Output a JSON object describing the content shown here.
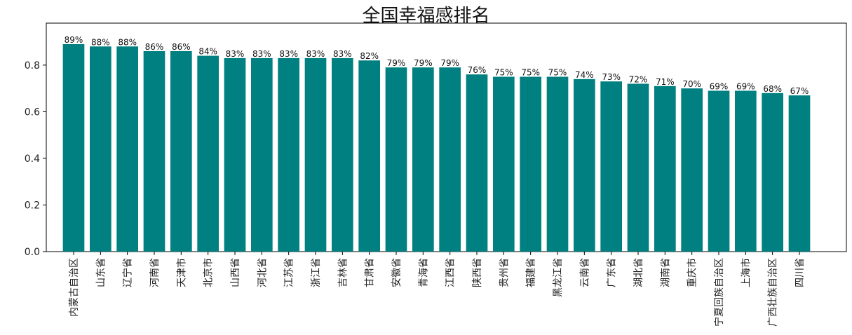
{
  "chart_data": {
    "type": "bar",
    "title": "全国幸福感排名",
    "xlabel": "",
    "ylabel": "",
    "ylim": [
      0,
      0.98
    ],
    "yticks": [
      0.0,
      0.2,
      0.4,
      0.6,
      0.8
    ],
    "ytick_labels": [
      "0.0",
      "0.2",
      "0.4",
      "0.6",
      "0.8"
    ],
    "bar_color": "#008080",
    "categories": [
      "内蒙古自治区",
      "山东省",
      "辽宁省",
      "河南省",
      "天津市",
      "北京市",
      "山西省",
      "河北省",
      "江苏省",
      "浙江省",
      "吉林省",
      "甘肃省",
      "安徽省",
      "青海省",
      "江西省",
      "陕西省",
      "贵州省",
      "福建省",
      "黑龙江省",
      "云南省",
      "广东省",
      "湖北省",
      "湖南省",
      "重庆市",
      "宁夏回族自治区",
      "上海市",
      "广西壮族自治区",
      "四川省"
    ],
    "values": [
      0.89,
      0.88,
      0.88,
      0.86,
      0.86,
      0.84,
      0.83,
      0.83,
      0.83,
      0.83,
      0.83,
      0.82,
      0.79,
      0.79,
      0.79,
      0.76,
      0.75,
      0.75,
      0.75,
      0.74,
      0.73,
      0.72,
      0.71,
      0.7,
      0.69,
      0.69,
      0.68,
      0.67
    ],
    "value_labels": [
      "89%",
      "88%",
      "88%",
      "86%",
      "86%",
      "84%",
      "83%",
      "83%",
      "83%",
      "83%",
      "83%",
      "82%",
      "79%",
      "79%",
      "79%",
      "76%",
      "75%",
      "75%",
      "75%",
      "74%",
      "73%",
      "72%",
      "71%",
      "70%",
      "69%",
      "69%",
      "68%",
      "67%"
    ],
    "grid": false,
    "legend": "none"
  }
}
